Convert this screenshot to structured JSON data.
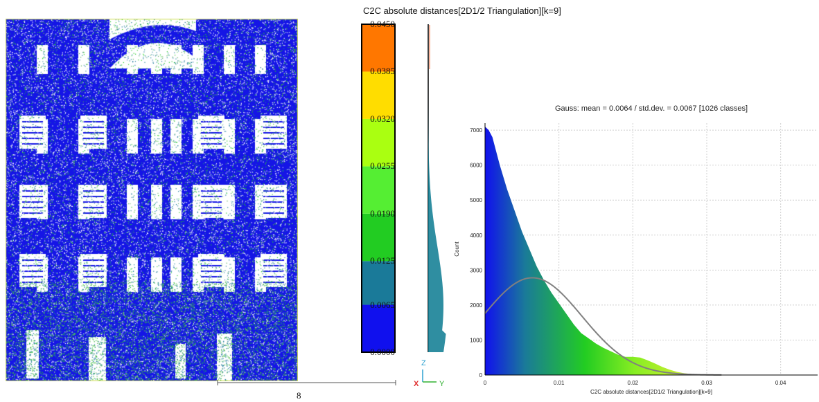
{
  "viewer": {
    "title": "C2C absolute distances[2D1/2 Triangulation][k=9]",
    "scale_value": "8",
    "axes": {
      "z": "Z",
      "x": "X",
      "y": "Y"
    }
  },
  "scalar_field": {
    "ticks": [
      "0.0450",
      "0.0385",
      "0.0320",
      "0.0255",
      "0.0190",
      "0.0125",
      "0.0065",
      "0.0000"
    ],
    "tick_values": [
      0.045,
      0.0385,
      0.032,
      0.0255,
      0.019,
      0.0125,
      0.0065,
      0.0
    ],
    "colors": {
      "band_0_0065": "#1010ee",
      "band_0065_0125": "#1a7a99",
      "band_0125_019": "#22cc22",
      "band_019_0255": "#55ee33",
      "band_0255_032": "#aaff11",
      "band_032_0385": "#ffdd00",
      "band_0385_045": "#ff7700"
    }
  },
  "chart_data": {
    "type": "area",
    "title": "Gauss: mean = 0.0064 / std.dev. = 0.0067 [1026 classes]",
    "xlabel": "C2C absolute distances[2D1/2 Triangulation][k=9]",
    "ylabel": "Count",
    "xlim": [
      0,
      0.045
    ],
    "ylim": [
      0,
      7200
    ],
    "x_ticks": [
      "0",
      "0.01",
      "0.02",
      "0.03",
      "0.04"
    ],
    "x_tick_values": [
      0,
      0.01,
      0.02,
      0.03,
      0.04
    ],
    "y_ticks": [
      "0",
      "1000",
      "2000",
      "3000",
      "4000",
      "5000",
      "6000",
      "7000"
    ],
    "y_tick_values": [
      0,
      1000,
      2000,
      3000,
      4000,
      5000,
      6000,
      7000
    ],
    "grid": true,
    "series": [
      {
        "type": "histogram",
        "x": [
          0,
          0.0005,
          0.001,
          0.0015,
          0.002,
          0.003,
          0.004,
          0.005,
          0.006,
          0.007,
          0.008,
          0.009,
          0.01,
          0.011,
          0.012,
          0.013,
          0.014,
          0.015,
          0.016,
          0.017,
          0.018,
          0.019,
          0.02,
          0.021,
          0.022,
          0.023,
          0.024,
          0.025,
          0.026,
          0.027,
          0.028,
          0.03,
          0.033,
          0.036,
          0.04,
          0.045
        ],
        "y": [
          7100,
          7000,
          6800,
          6400,
          6000,
          5300,
          4700,
          4100,
          3600,
          3100,
          2700,
          2350,
          2050,
          1750,
          1450,
          1200,
          1050,
          900,
          780,
          680,
          580,
          520,
          520,
          500,
          420,
          330,
          230,
          150,
          90,
          50,
          30,
          15,
          8,
          5,
          3,
          2
        ]
      },
      {
        "type": "gauss",
        "mean": 0.0064,
        "std": 0.0067,
        "peak": 2780
      }
    ]
  }
}
